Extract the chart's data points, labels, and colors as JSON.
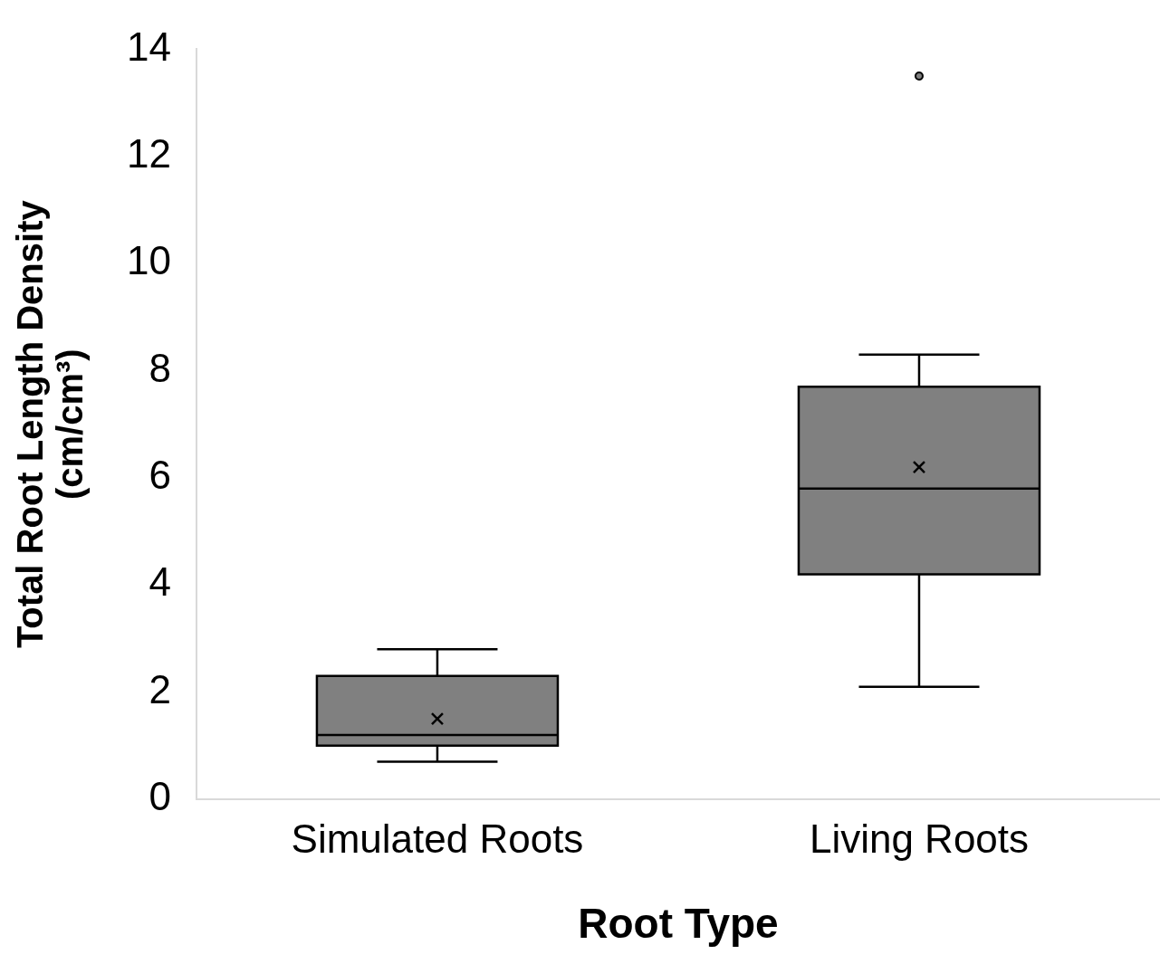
{
  "chart_data": {
    "type": "box",
    "xlabel": "Root Type",
    "ylabel": "Total Root Length Density (cm/cm³)",
    "categories": [
      "Simulated Roots",
      "Living Roots"
    ],
    "color": "#808080",
    "boxes": [
      {
        "low": 0.7,
        "q1": 1.0,
        "median": 1.2,
        "q3": 2.3,
        "high": 2.8,
        "mean": 1.5
      },
      {
        "low": 2.1,
        "q1": 4.2,
        "median": 5.8,
        "q3": 7.7,
        "high": 8.3,
        "mean": 6.2,
        "outliers": [
          13.5
        ]
      }
    ],
    "ylim": [
      0,
      14
    ],
    "yticks": [
      0,
      2,
      4,
      6,
      8,
      10,
      12,
      14
    ],
    "grid": false,
    "legend": false
  }
}
